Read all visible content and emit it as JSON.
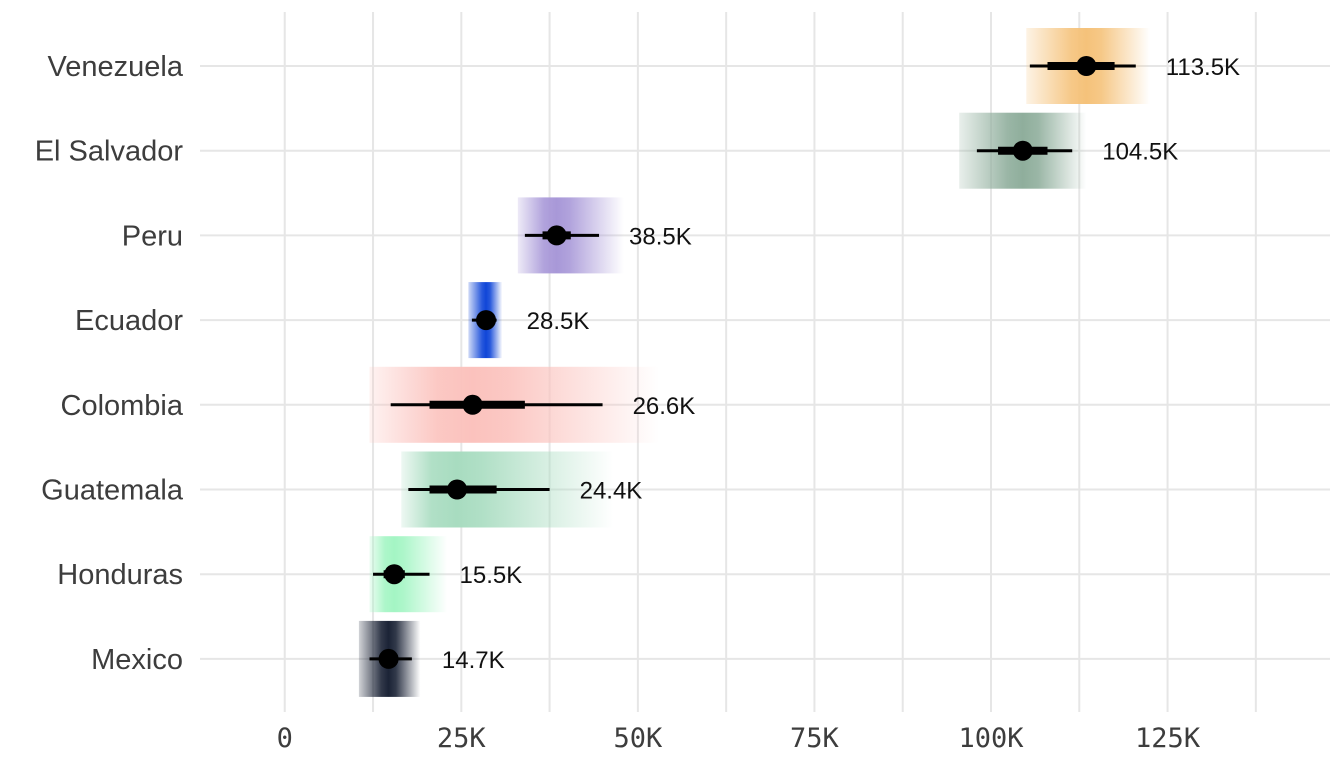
{
  "chart_data": {
    "type": "scatter",
    "title": "",
    "xlabel": "",
    "ylabel": "",
    "xlim": [
      -12000,
      148000
    ],
    "x_ticks": [
      0,
      25000,
      50000,
      75000,
      100000,
      125000
    ],
    "x_tick_labels": [
      "0",
      "25K",
      "50K",
      "75K",
      "100K",
      "125K"
    ],
    "grid": true,
    "legend": "none",
    "categories": [
      "Venezuela",
      "El Salvador",
      "Peru",
      "Ecuador",
      "Colombia",
      "Guatemala",
      "Honduras",
      "Mexico"
    ],
    "series": [
      {
        "category": "Venezuela",
        "value": 113500,
        "label": "113.5K",
        "inner": [
          108000,
          117500
        ],
        "outer": [
          105500,
          120500
        ],
        "band": [
          105000,
          122500
        ],
        "color": "#f5c27a"
      },
      {
        "category": "El Salvador",
        "value": 104500,
        "label": "104.5K",
        "inner": [
          101000,
          108000
        ],
        "outer": [
          98000,
          111500
        ],
        "band": [
          95500,
          113500
        ],
        "color": "#8fae9c"
      },
      {
        "category": "Peru",
        "value": 38500,
        "label": "38.5K",
        "inner": [
          36500,
          40500
        ],
        "outer": [
          34000,
          44500
        ],
        "band": [
          33000,
          48000
        ],
        "color": "#a898d8"
      },
      {
        "category": "Ecuador",
        "value": 28500,
        "label": "28.5K",
        "inner": [
          27500,
          29500
        ],
        "outer": [
          26500,
          30000
        ],
        "band": [
          26000,
          30800
        ],
        "color": "#1046d8"
      },
      {
        "category": "Colombia",
        "value": 26600,
        "label": "26.6K",
        "inner": [
          20500,
          34000
        ],
        "outer": [
          15000,
          45000
        ],
        "band": [
          12000,
          53000
        ],
        "color": "#fbc2bd"
      },
      {
        "category": "Guatemala",
        "value": 24400,
        "label": "24.4K",
        "inner": [
          20500,
          30000
        ],
        "outer": [
          17500,
          37500
        ],
        "band": [
          16500,
          46500
        ],
        "color": "#a8dcc0"
      },
      {
        "category": "Honduras",
        "value": 15500,
        "label": "15.5K",
        "inner": [
          14000,
          17000
        ],
        "outer": [
          12500,
          20500
        ],
        "band": [
          12000,
          23000
        ],
        "color": "#a4f5c4"
      },
      {
        "category": "Mexico",
        "value": 14700,
        "label": "14.7K",
        "inner": [
          13500,
          16000
        ],
        "outer": [
          12000,
          18000
        ],
        "band": [
          10500,
          19200
        ],
        "color": "#1b2336"
      }
    ]
  }
}
